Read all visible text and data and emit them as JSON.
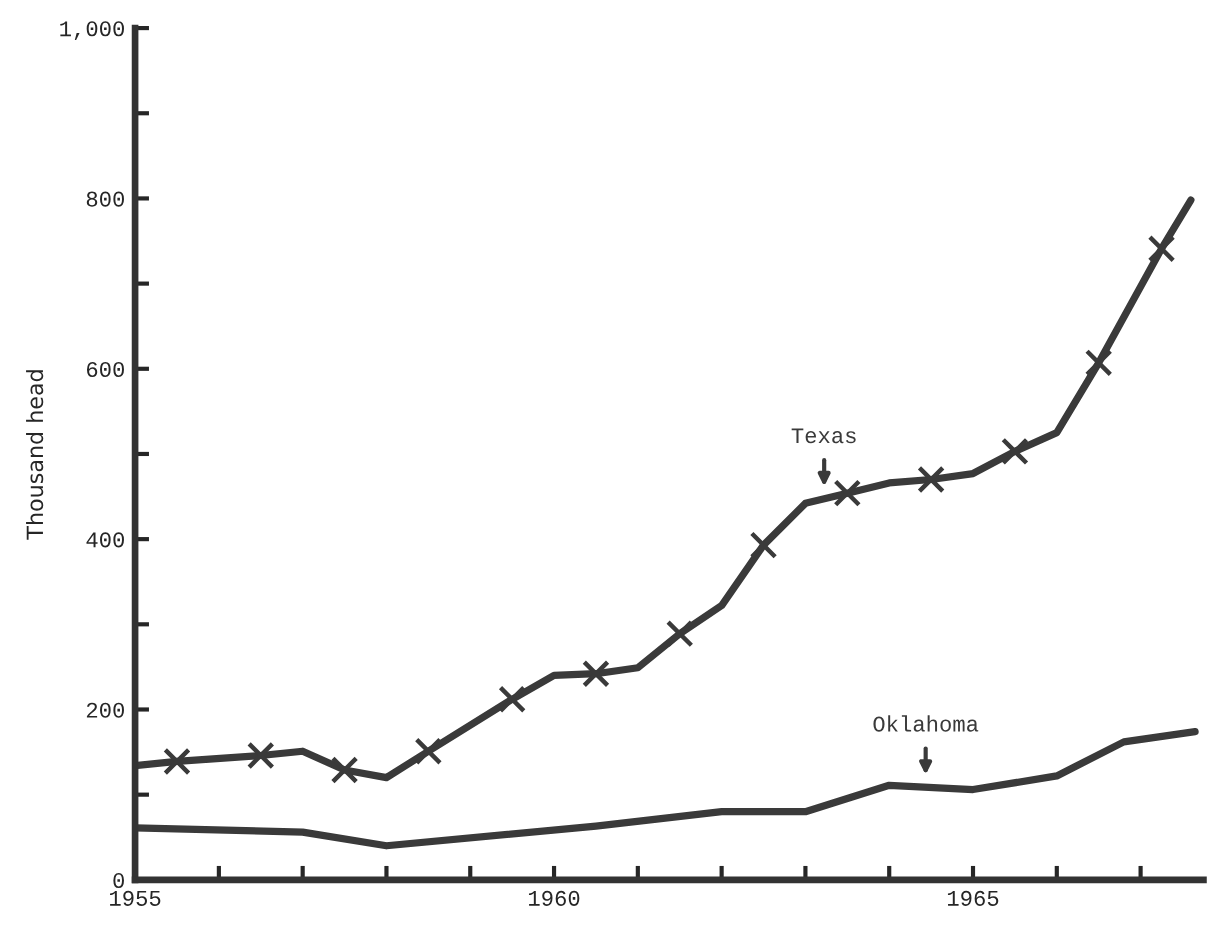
{
  "chart_data": {
    "type": "line",
    "ylabel": "Thousand head",
    "series": [
      {
        "name": "Texas",
        "color": "#3a3a3a",
        "marker": "none",
        "x": [
          1955.0,
          1955.5,
          1956.5,
          1957.0,
          1957.5,
          1958.0,
          1958.5,
          1959.5,
          1960.0,
          1960.5,
          1961.0,
          1961.5,
          1962.0,
          1962.5,
          1963.0,
          1963.5,
          1964.0,
          1964.5,
          1965.0,
          1965.5,
          1966.0,
          1966.5,
          1967.25,
          1967.6
        ],
        "values": [
          134,
          139,
          146,
          151,
          129,
          120,
          151,
          212,
          240,
          242,
          249,
          289,
          322,
          393,
          442,
          454,
          466,
          470,
          477,
          503,
          525,
          607,
          741,
          798
        ]
      },
      {
        "type": "scatter",
        "color": "#3a3a3a",
        "marker": "cross",
        "x": [
          1955.5,
          1956.5,
          1957.5,
          1958.5,
          1959.5,
          1960.5,
          1961.5,
          1962.5,
          1963.5,
          1964.5,
          1965.5,
          1966.5,
          1967.25
        ],
        "values": [
          139,
          146,
          129,
          151,
          212,
          242,
          289,
          393,
          454,
          470,
          503,
          607,
          741
        ]
      },
      {
        "name": "Oklahoma",
        "color": "#3a3a3a",
        "marker": "none",
        "x": [
          1955.0,
          1957.0,
          1958.0,
          1960.5,
          1962.0,
          1963.0,
          1964.0,
          1965.0,
          1966.0,
          1966.8,
          1967.65
        ],
        "values": [
          61,
          56,
          40,
          63,
          80,
          80,
          111,
          106,
          122,
          162,
          174
        ]
      }
    ],
    "xlim": [
      1955,
      1967.75
    ],
    "ylim": [
      0,
      1000
    ],
    "xticks": [
      1955,
      {
        "value": 1956,
        "label": null
      },
      {
        "value": 1957,
        "label": null
      },
      {
        "value": 1958,
        "label": null
      },
      {
        "value": 1959,
        "label": null
      },
      1960,
      {
        "value": 1961,
        "label": null
      },
      {
        "value": 1962,
        "label": null
      },
      {
        "value": 1963,
        "label": null
      },
      {
        "value": 1964,
        "label": null
      },
      1965,
      {
        "value": 1966,
        "label": null
      },
      {
        "value": 1967,
        "label": null
      }
    ],
    "yticks": [
      0,
      {
        "value": 100,
        "label": null
      },
      200,
      {
        "value": 300,
        "label": null
      },
      400,
      {
        "value": 500,
        "label": null
      },
      600,
      {
        "value": 700,
        "label": null
      },
      800,
      {
        "value": 900,
        "label": null
      },
      {
        "value": 1000,
        "label": "1,000"
      }
    ],
    "grid": false,
    "legend": false,
    "line_style": "solid"
  }
}
